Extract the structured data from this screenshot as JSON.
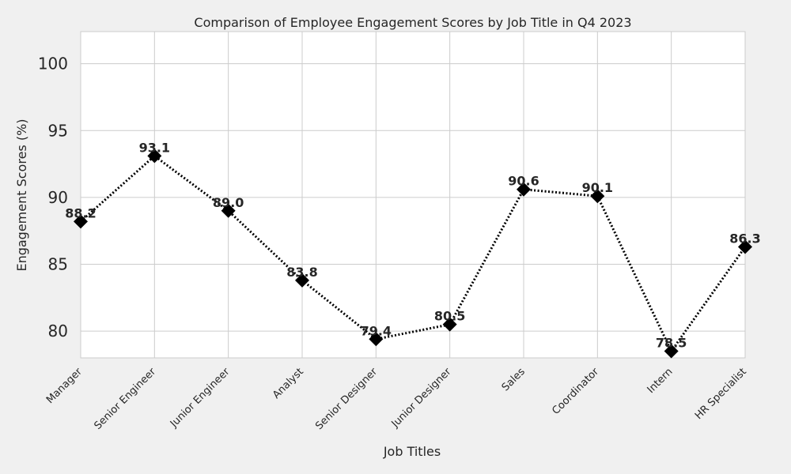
{
  "chart_data": {
    "type": "line",
    "title": "Comparison of Employee Engagement Scores by Job Title in Q4 2023",
    "xlabel": "Job Titles",
    "ylabel": "Engagement Scores (%)",
    "categories": [
      "Manager",
      "Senior Engineer",
      "Junior Engineer",
      "Analyst",
      "Senior Designer",
      "Junior Designer",
      "Sales",
      "Coordinator",
      "Intern",
      "HR Specialist"
    ],
    "values": [
      88.2,
      93.1,
      89.0,
      83.8,
      79.4,
      80.5,
      90.6,
      90.1,
      78.5,
      86.3
    ],
    "data_labels": [
      "88.2",
      "93.1",
      "89.0",
      "83.8",
      "79.4",
      "80.5",
      "90.6",
      "90.1",
      "78.5",
      "86.3"
    ],
    "yticks": [
      80,
      85,
      90,
      95,
      100
    ],
    "ytick_labels": [
      "80",
      "85",
      "90",
      "95",
      "100"
    ],
    "ylim": [
      78.0,
      102.4
    ],
    "grid": true,
    "line_style": "dotted",
    "marker": "diamond",
    "colors": {
      "line": "#000000",
      "marker": "#000000",
      "plot_background": "#ffffff",
      "figure_background": "#f0f0f0",
      "grid": "#cccccc",
      "text": "#262626"
    }
  }
}
